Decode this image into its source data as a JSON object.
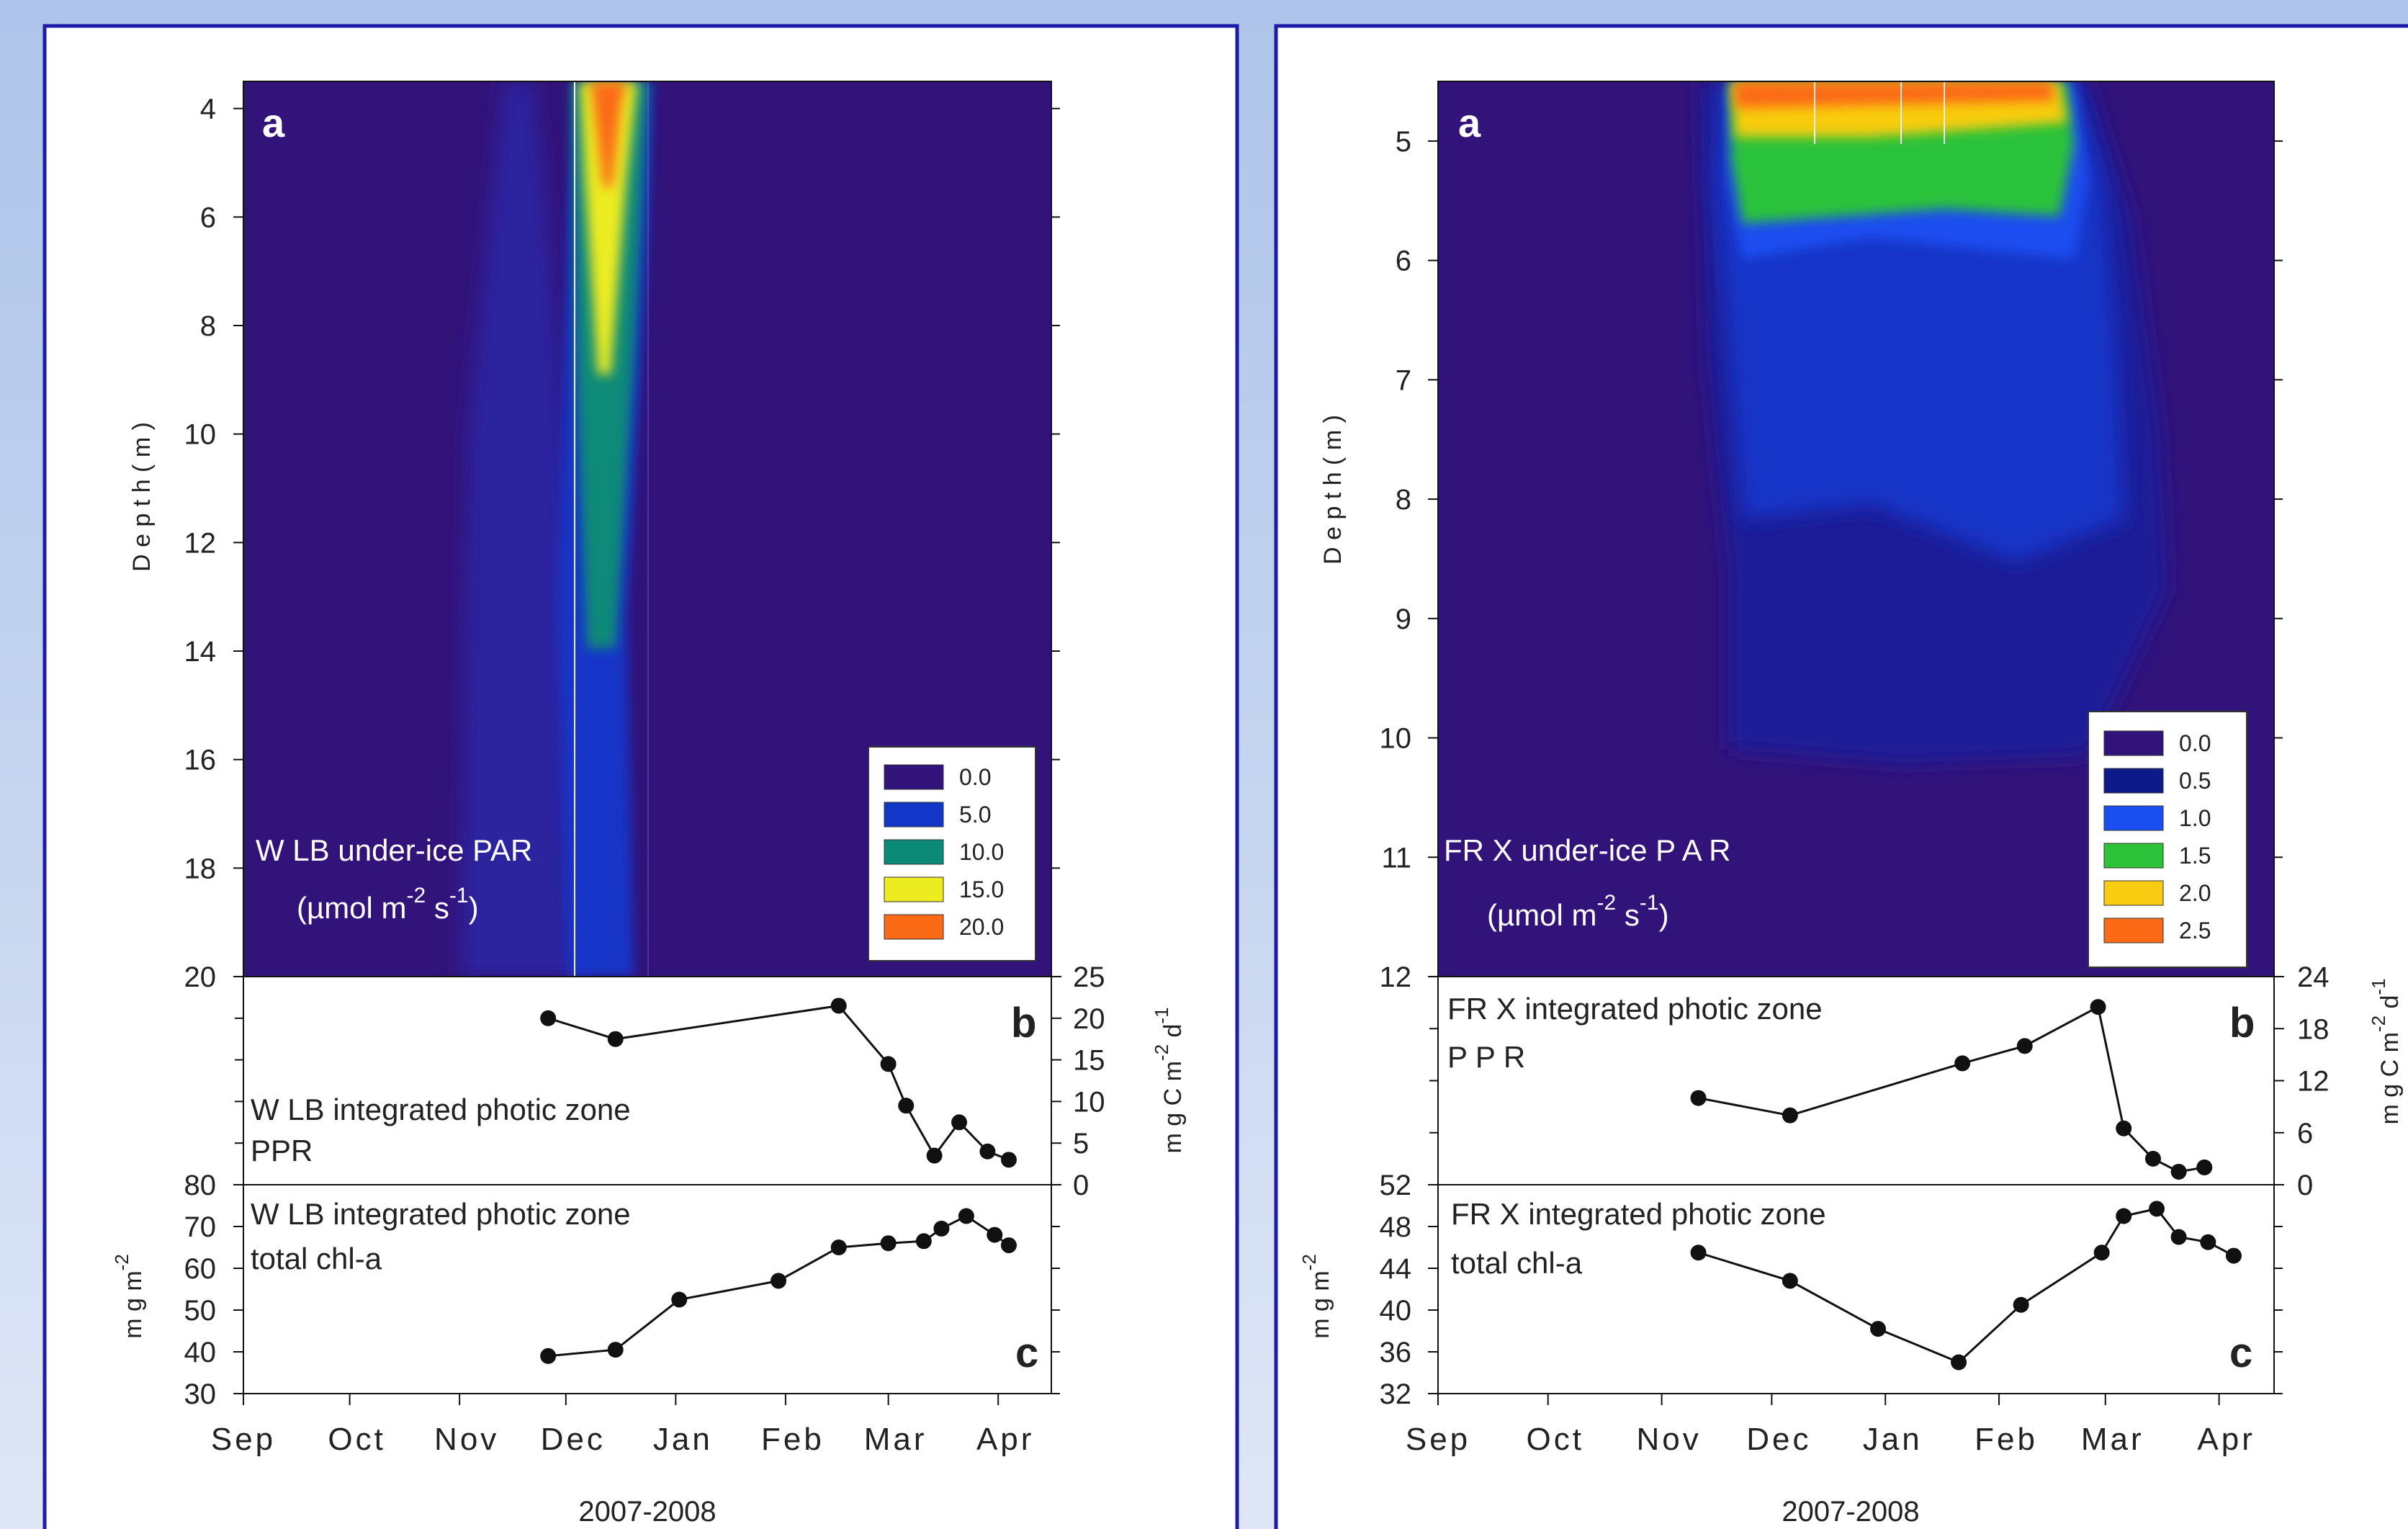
{
  "colors": {
    "deep": "#32137a",
    "blue": "#1236c8",
    "mid_blue": "#1a4ef0",
    "teal": "#0c8a78",
    "green": "#2cc23a",
    "yellow": "#ecec20",
    "gold": "#f8cc10",
    "orange": "#fb6a14",
    "frame": "#1c1ca8"
  },
  "panels": [
    {
      "id": "wlb",
      "panel_a": {
        "letter": "a",
        "ylabel": "D e p t h  ( m )",
        "label_line1": "W LB under-ice PAR",
        "label_line2": "(µmol m",
        "label_sup1": "-2",
        "label_mid": " s",
        "label_sup2": "-1",
        "label_end": ")"
      },
      "panel_b": {
        "letter": "b",
        "label_line1": "W LB integrated photic zone",
        "label_line2": "PPR",
        "ylabel": "m g  C  m",
        "ylabel_sup1": "-2",
        "ylabel_mid": " d",
        "ylabel_sup2": "-1"
      },
      "panel_c": {
        "letter": "c",
        "label_line1": "W LB integrated photic zone",
        "label_line2": "total chl-a",
        "ylabel": "m g  m",
        "ylabel_sup": "-2"
      },
      "xlabel": "2007-2008"
    },
    {
      "id": "frx",
      "panel_a": {
        "letter": "a",
        "ylabel": "D e p t h  ( m )",
        "label_line1": "FR X under-ice P A R",
        "label_line2": "(µmol m",
        "label_sup1": "-2",
        "label_mid": " s",
        "label_sup2": "-1",
        "label_end": ")"
      },
      "panel_b": {
        "letter": "b",
        "label_line1": "FR X integrated photic zone",
        "label_line2": "P P R",
        "ylabel": "m g  C  m",
        "ylabel_sup1": "-2",
        "ylabel_mid": " d",
        "ylabel_sup2": "-1"
      },
      "panel_c": {
        "letter": "c",
        "label_line1": "FR X integrated photic zone",
        "label_line2": "total chl-a",
        "ylabel": "m g  m",
        "ylabel_sup": "-2"
      },
      "xlabel": "2007-2008"
    }
  ],
  "chart_data": [
    {
      "type": "heatmap",
      "site": "WLB",
      "x_range_months": [
        "Sep",
        "Apr"
      ],
      "y_range_depth_m": [
        3.5,
        20
      ],
      "y_reversed": true,
      "y_ticks": [
        "4",
        "6",
        "8",
        "10",
        "12",
        "14",
        "16",
        "18",
        "20"
      ],
      "y_tick_values": [
        4,
        6,
        8,
        10,
        12,
        14,
        16,
        18,
        20
      ],
      "legend": [
        "0.0",
        "5.0",
        "10.0",
        "15.0",
        "20.0"
      ],
      "legend_colors": [
        "#32137a",
        "#1236c8",
        "#0c8a78",
        "#ecec20",
        "#fb6a14"
      ],
      "legend_placement": "bottom-right",
      "max_par_event": "mid-Dec 2007, surface to ~10 m"
    },
    {
      "type": "line",
      "site": "WLB",
      "variable": "integrated photic zone PPR",
      "x": [
        "2007-11-26",
        "2007-12-15",
        "2008-02-16",
        "2008-03-01",
        "2008-03-06",
        "2008-03-14",
        "2008-03-21",
        "2008-03-29",
        "2008-04-04"
      ],
      "y": [
        20,
        17.5,
        21.5,
        14.5,
        9.5,
        3.5,
        7.5,
        4,
        3
      ],
      "ylim": [
        0,
        25
      ],
      "y_ticks": [
        "0",
        "5",
        "10",
        "15",
        "20",
        "25"
      ],
      "y_tick_values": [
        0,
        5,
        10,
        15,
        20,
        25
      ]
    },
    {
      "type": "line",
      "site": "WLB",
      "variable": "integrated photic zone total chl-a",
      "x": [
        "2007-11-26",
        "2007-12-15",
        "2008-01-02",
        "2008-01-30",
        "2008-02-16",
        "2008-03-01",
        "2008-03-11",
        "2008-03-16",
        "2008-03-23",
        "2008-03-31",
        "2008-04-04"
      ],
      "y": [
        39,
        40.5,
        52.5,
        57,
        65,
        66,
        66.5,
        69.5,
        72.5,
        68,
        65.5
      ],
      "ylim": [
        30,
        80
      ],
      "y_ticks": [
        "30",
        "40",
        "50",
        "60",
        "70",
        "80"
      ],
      "y_tick_values": [
        30,
        40,
        50,
        60,
        70,
        80
      ],
      "x_ticks": [
        "Sep",
        "Oct",
        "Nov",
        "Dec",
        "Jan",
        "Feb",
        "Mar",
        "Apr"
      ]
    },
    {
      "type": "heatmap",
      "site": "FRX",
      "x_range_months": [
        "Sep",
        "Apr"
      ],
      "y_range_depth_m": [
        4.5,
        12
      ],
      "y_reversed": true,
      "y_ticks": [
        "5",
        "6",
        "7",
        "8",
        "9",
        "10",
        "11",
        "12"
      ],
      "y_tick_values": [
        5,
        6,
        7,
        8,
        9,
        10,
        11,
        12
      ],
      "legend": [
        "0.0",
        "0.5",
        "1.0",
        "1.5",
        "2.0",
        "2.5"
      ],
      "legend_colors": [
        "#32137a",
        "#0c1a8a",
        "#1a4ef0",
        "#2cc23a",
        "#f8cc10",
        "#fb6a14"
      ],
      "legend_placement": "bottom-right",
      "max_par_event": "late Nov 2007 - early Mar 2008, surface"
    },
    {
      "type": "line",
      "site": "FRX",
      "variable": "integrated photic zone PPR",
      "x": [
        "2007-11-11",
        "2007-12-06",
        "2008-01-22",
        "2008-02-08",
        "2008-02-28",
        "2008-03-06",
        "2008-03-14",
        "2008-03-21",
        "2008-03-28"
      ],
      "y": [
        10,
        8,
        14,
        16,
        20.5,
        6.5,
        3,
        1.5,
        2
      ],
      "ylim": [
        0,
        24
      ],
      "y_ticks": [
        "0",
        "6",
        "12",
        "18",
        "24"
      ],
      "y_tick_values": [
        0,
        6,
        12,
        18,
        24
      ]
    },
    {
      "type": "line",
      "site": "FRX",
      "variable": "integrated photic zone total chl-a",
      "x": [
        "2007-11-11",
        "2007-12-06",
        "2007-12-30",
        "2008-01-21",
        "2008-02-07",
        "2008-02-29",
        "2008-03-06",
        "2008-03-15",
        "2008-03-21",
        "2008-03-29",
        "2008-04-05"
      ],
      "y": [
        45.5,
        42.8,
        38.2,
        35,
        40.5,
        45.5,
        49,
        49.7,
        47,
        46.5,
        45.2
      ],
      "ylim": [
        32,
        52
      ],
      "y_ticks": [
        "32",
        "36",
        "40",
        "44",
        "48",
        "52"
      ],
      "y_tick_values": [
        32,
        36,
        40,
        44,
        48,
        52
      ],
      "x_ticks": [
        "Sep",
        "Oct",
        "Nov",
        "Dec",
        "Jan",
        "Feb",
        "Mar",
        "Apr"
      ]
    }
  ]
}
